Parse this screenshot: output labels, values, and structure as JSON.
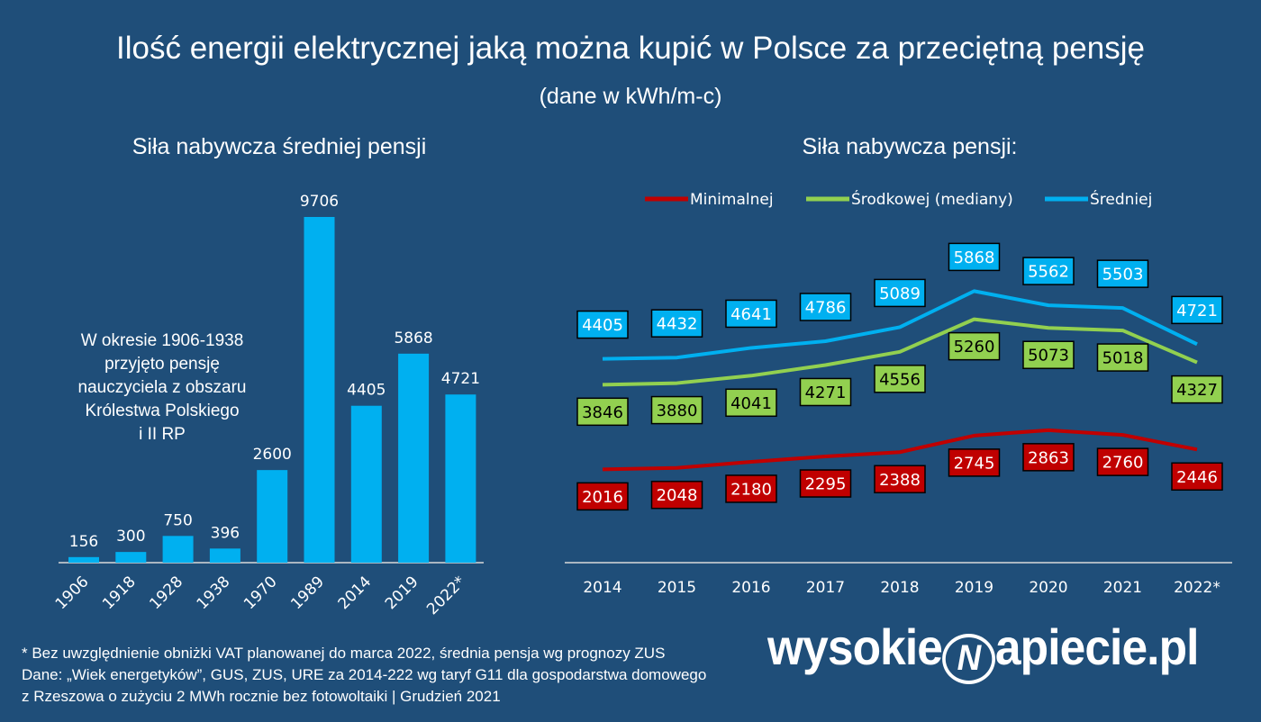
{
  "title": "Ilość energii elektrycznej jaką można kupić w Polsce za przeciętną pensję",
  "subtitle": "(dane w kWh/m-c)",
  "colors": {
    "background": "#1f4e79",
    "bar": "#00b0f0",
    "minimal": "#c00000",
    "median": "#92d050",
    "average": "#00b0f0"
  },
  "chart_data": [
    {
      "type": "bar",
      "title": "Siła nabywcza średniej pensji",
      "categories": [
        "1906",
        "1918",
        "1928",
        "1938",
        "1970",
        "1989",
        "2014",
        "2019",
        "2022*"
      ],
      "values": [
        156,
        300,
        750,
        396,
        2600,
        9706,
        4405,
        5868,
        4721
      ],
      "annotation": [
        "W okresie 1906-1938",
        "przyjęto pensję",
        "nauczyciela z obszaru",
        "Królestwa Polskiego",
        "i II RP"
      ]
    },
    {
      "type": "line",
      "title": "Siła nabywcza pensji:",
      "legend": "top",
      "categories": [
        "2014",
        "2015",
        "2016",
        "2017",
        "2018",
        "2019",
        "2020",
        "2021",
        "2022*"
      ],
      "series": [
        {
          "name": "Minimalnej",
          "color": "#c00000",
          "values": [
            2016,
            2048,
            2180,
            2295,
            2388,
            2745,
            2863,
            2760,
            2446
          ]
        },
        {
          "name": "Środkowej (mediany)",
          "color": "#92d050",
          "values": [
            3846,
            3880,
            4041,
            4271,
            4556,
            5260,
            5073,
            5018,
            4327
          ]
        },
        {
          "name": "Średniej",
          "color": "#00b0f0",
          "values": [
            4405,
            4432,
            4641,
            4786,
            5089,
            5868,
            5562,
            5503,
            4721
          ]
        }
      ]
    }
  ],
  "footnotes": [
    "* Bez uwzględnienie obniżki VAT planowanej do marca 2022, średnia pensja wg prognozy ZUS",
    "Dane: „Wiek energetyków”, GUS, ZUS, URE za 2014-222 wg taryf G11 dla gospodarstwa domowego",
    "z Rzeszowa o zużyciu 2 MWh rocznie bez fotowoltaiki  | Grudzień 2021"
  ],
  "logo": {
    "left": "wysokie",
    "right": "apiecie.pl"
  }
}
